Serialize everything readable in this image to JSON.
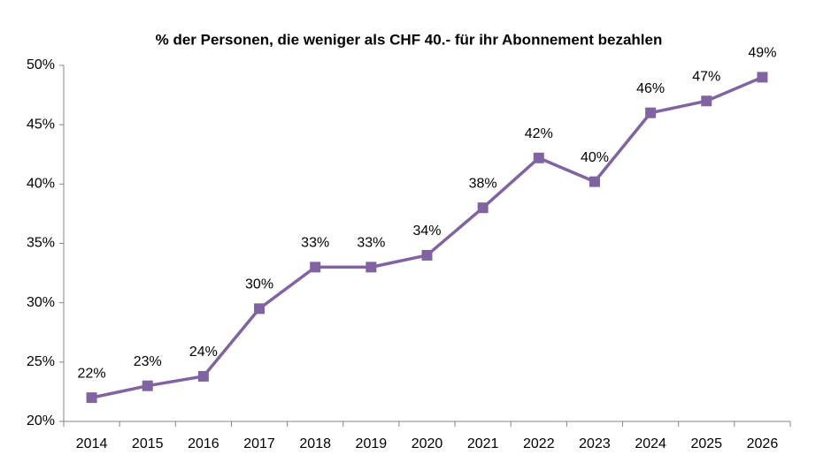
{
  "chart_data": {
    "type": "line",
    "title": "% der Personen, die weniger als CHF 40.- für ihr Abonnement bezahlen",
    "categories": [
      "2014",
      "2015",
      "2016",
      "2017",
      "2018",
      "2019",
      "2020",
      "2021",
      "2022",
      "2023",
      "2024",
      "2025",
      "2026"
    ],
    "values": [
      22,
      23,
      23.8,
      29.5,
      33,
      33,
      34,
      38,
      42.2,
      40.2,
      46,
      47,
      49
    ],
    "value_labels": [
      "22%",
      "23%",
      "24%",
      "30%",
      "33%",
      "33%",
      "34%",
      "38%",
      "42%",
      "40%",
      "46%",
      "47%",
      "49%"
    ],
    "color": "#8064a2",
    "ylim": [
      20,
      50
    ],
    "yticks": [
      {
        "value": 20,
        "label": "20%"
      },
      {
        "value": 25,
        "label": "25%"
      },
      {
        "value": 30,
        "label": "30%"
      },
      {
        "value": 35,
        "label": "35%"
      },
      {
        "value": 40,
        "label": "40%"
      },
      {
        "value": 45,
        "label": "45%"
      },
      {
        "value": 50,
        "label": "50%"
      }
    ],
    "grid": false
  }
}
